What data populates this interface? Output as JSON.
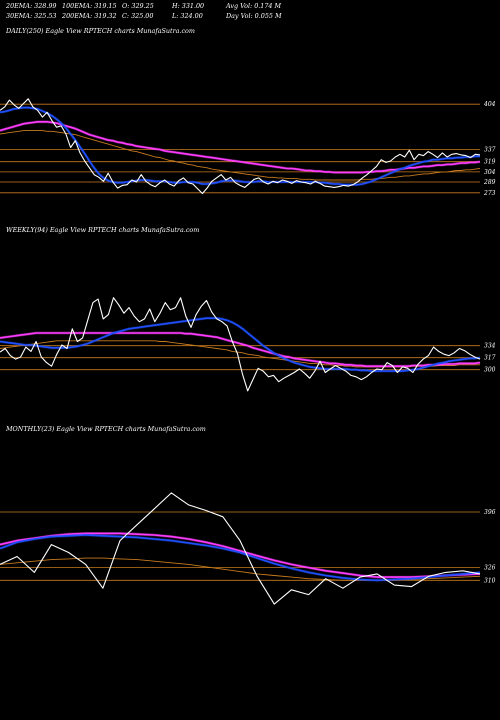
{
  "header": {
    "row1": [
      "20EMA: 328.99",
      "100EMA: 319.15",
      "O: 329.25",
      "H: 331.00",
      "Avg Vol: 0.174  M"
    ],
    "row2": [
      "30EMA: 325.53",
      "200EMA: 319.32",
      "C: 325.00",
      "L: 324.00",
      "Day Vol: 0.055 M"
    ]
  },
  "colors": {
    "background": "#000000",
    "price": "#ffffff",
    "ema_short": "#1f4fff",
    "ema_mid": "#ff3cff",
    "ema_long": "#c87a1e",
    "level_line": "#c87a1e"
  },
  "chart_data": [
    {
      "type": "line",
      "title": "DAILY(250) Eagle   View  RPTECH charts MunafaSutra.com",
      "levels": [
        404,
        337,
        319,
        304,
        289,
        273
      ],
      "series": [
        {
          "role": "price",
          "values": [
            395,
            400,
            410,
            403,
            398,
            405,
            412,
            400,
            395,
            385,
            392,
            380,
            370,
            372,
            360,
            340,
            350,
            332,
            320,
            310,
            300,
            296,
            290,
            302,
            289,
            280,
            284,
            285,
            292,
            289,
            300,
            290,
            285,
            282,
            288,
            292,
            286,
            283,
            291,
            295,
            288,
            286,
            279,
            272,
            280,
            290,
            295,
            300,
            292,
            296,
            288,
            284,
            281,
            287,
            293,
            295,
            289,
            286,
            290,
            288,
            292,
            290,
            287,
            291,
            289,
            288,
            286,
            290,
            287,
            283,
            282,
            281,
            282,
            284,
            283,
            285,
            289,
            295,
            300,
            306,
            312,
            322,
            318,
            320,
            326,
            330,
            326,
            336,
            322,
            330,
            328,
            334,
            330,
            325,
            332,
            326,
            330,
            331,
            329,
            328,
            325,
            330,
            329
          ]
        },
        {
          "role": "ema_short",
          "values": [
            392,
            393,
            395,
            397,
            398,
            399,
            399,
            398,
            397,
            394,
            391,
            387,
            382,
            376,
            369,
            360,
            351,
            341,
            331,
            320,
            310,
            301,
            295,
            291,
            289,
            288,
            288,
            289,
            290,
            291,
            292,
            292,
            291,
            290,
            290,
            290,
            289,
            288,
            288,
            289,
            289,
            289,
            288,
            286,
            286,
            287,
            288,
            290,
            291,
            291,
            291,
            290,
            289,
            289,
            289,
            290,
            290,
            289,
            289,
            289,
            289,
            289,
            289,
            289,
            289,
            289,
            289,
            289,
            288,
            288,
            287,
            286,
            286,
            285,
            285,
            285,
            285,
            286,
            288,
            290,
            293,
            296,
            299,
            302,
            305,
            308,
            310,
            313,
            315,
            317,
            319,
            320,
            322,
            322,
            323,
            324,
            324,
            325,
            325,
            326,
            326,
            327,
            327
          ]
        },
        {
          "role": "ema_mid",
          "values": [
            365,
            367,
            369,
            371,
            373,
            375,
            376,
            377,
            378,
            378,
            378,
            377,
            376,
            374,
            372,
            370,
            368,
            365,
            362,
            359,
            357,
            355,
            353,
            351,
            350,
            348,
            347,
            345,
            344,
            342,
            341,
            340,
            339,
            338,
            337,
            335,
            334,
            333,
            332,
            331,
            330,
            329,
            328,
            327,
            326,
            325,
            324,
            323,
            322,
            321,
            320,
            319,
            318,
            317,
            316,
            315,
            314,
            313,
            312,
            311,
            310,
            309,
            309,
            308,
            307,
            306,
            306,
            305,
            305,
            304,
            304,
            303,
            303,
            303,
            303,
            303,
            303,
            303,
            304,
            304,
            305,
            305,
            306,
            307,
            307,
            308,
            309,
            310,
            310,
            311,
            312,
            312,
            313,
            314,
            314,
            315,
            315,
            316,
            317,
            317,
            318,
            318,
            319
          ]
        },
        {
          "role": "ema_long",
          "values": [
            360,
            361,
            362,
            363,
            364,
            365,
            365,
            365,
            365,
            365,
            364,
            364,
            363,
            362,
            361,
            360,
            359,
            357,
            355,
            353,
            351,
            349,
            347,
            345,
            343,
            341,
            339,
            337,
            335,
            334,
            332,
            330,
            328,
            326,
            325,
            323,
            321,
            320,
            318,
            317,
            315,
            314,
            312,
            311,
            310,
            308,
            307,
            306,
            305,
            304,
            303,
            302,
            301,
            300,
            299,
            298,
            297,
            296,
            296,
            295,
            295,
            294,
            294,
            294,
            293,
            293,
            293,
            292,
            292,
            292,
            292,
            292,
            292,
            292,
            292,
            292,
            292,
            293,
            293,
            293,
            294,
            294,
            295,
            296,
            296,
            297,
            298,
            298,
            299,
            300,
            301,
            301,
            302,
            303,
            304,
            304,
            305,
            306,
            306,
            307,
            307,
            308,
            309
          ]
        }
      ]
    },
    {
      "type": "line",
      "title": "WEEKLY(94) Eagle   View  RPTECH charts MunafaSutra.com",
      "levels": [
        334,
        317,
        300
      ],
      "series": [
        {
          "role": "price",
          "values": [
            325,
            330,
            320,
            315,
            318,
            332,
            326,
            340,
            318,
            310,
            305,
            322,
            335,
            330,
            358,
            340,
            345,
            370,
            395,
            400,
            372,
            378,
            402,
            392,
            380,
            388,
            376,
            368,
            372,
            386,
            368,
            380,
            395,
            385,
            388,
            402,
            376,
            360,
            378,
            390,
            398,
            382,
            372,
            368,
            362,
            340,
            323,
            293,
            270,
            286,
            302,
            298,
            290,
            292,
            283,
            288,
            292,
            296,
            301,
            295,
            288,
            298,
            312,
            296,
            301,
            306,
            302,
            298,
            292,
            290,
            286,
            290,
            296,
            301,
            300,
            310,
            306,
            296,
            304,
            302,
            296,
            308,
            315,
            320,
            332,
            326,
            322,
            320,
            324,
            330,
            327,
            322,
            318,
            315
          ]
        },
        {
          "role": "ema_short",
          "values": [
            340,
            339,
            338,
            337,
            336,
            335,
            335,
            334,
            333,
            332,
            331,
            331,
            331,
            331,
            332,
            333,
            335,
            337,
            340,
            343,
            346,
            349,
            352,
            354,
            356,
            358,
            359,
            360,
            361,
            362,
            363,
            364,
            365,
            366,
            367,
            368,
            369,
            370,
            371,
            372,
            373,
            373,
            373,
            372,
            370,
            367,
            363,
            358,
            352,
            346,
            340,
            334,
            329,
            324,
            320,
            316,
            313,
            310,
            308,
            306,
            304,
            303,
            302,
            301,
            301,
            301,
            301,
            301,
            300,
            300,
            299,
            299,
            298,
            298,
            298,
            298,
            298,
            298,
            298,
            299,
            300,
            301,
            303,
            305,
            307,
            309,
            310,
            312,
            313,
            314,
            315,
            316,
            316,
            317
          ]
        },
        {
          "role": "ema_mid",
          "values": [
            345,
            346,
            347,
            348,
            349,
            350,
            351,
            352,
            352,
            352,
            352,
            352,
            352,
            352,
            352,
            352,
            352,
            352,
            352,
            352,
            352,
            352,
            352,
            352,
            352,
            352,
            352,
            352,
            352,
            352,
            352,
            352,
            352,
            352,
            352,
            352,
            351,
            351,
            350,
            349,
            348,
            347,
            346,
            344,
            342,
            340,
            338,
            336,
            334,
            331,
            329,
            327,
            325,
            323,
            321,
            319,
            318,
            316,
            315,
            314,
            313,
            312,
            311,
            310,
            309,
            309,
            308,
            307,
            307,
            306,
            306,
            305,
            305,
            305,
            305,
            305,
            305,
            305,
            305,
            305,
            306,
            306,
            306,
            307,
            307,
            307,
            308,
            308,
            308,
            309,
            309,
            309,
            309,
            310
          ]
        },
        {
          "role": "ema_long",
          "values": [
            330,
            331,
            332,
            333,
            334,
            335,
            336,
            337,
            338,
            339,
            340,
            341,
            341,
            341,
            341,
            341,
            341,
            341,
            341,
            341,
            341,
            341,
            341,
            341,
            341,
            341,
            341,
            341,
            341,
            341,
            341,
            340,
            340,
            339,
            338,
            337,
            336,
            335,
            334,
            333,
            332,
            331,
            330,
            329,
            328,
            326,
            325,
            324,
            322,
            321,
            320,
            318,
            317,
            316,
            315,
            314,
            313,
            312,
            311,
            310,
            309,
            309,
            308,
            307,
            307,
            306,
            306,
            305,
            305,
            304,
            304,
            304,
            304,
            304,
            304,
            304,
            304,
            304,
            304,
            304,
            305,
            305,
            305,
            305,
            305,
            306,
            306,
            306,
            306,
            307,
            307,
            307,
            307,
            307
          ]
        }
      ]
    },
    {
      "type": "line",
      "title": "MONTHLY(23) Eagle   View  RPTECH charts MunafaSutra.com",
      "levels": [
        396,
        326,
        310
      ],
      "series": [
        {
          "role": "price",
          "values": [
            330,
            340,
            320,
            355,
            345,
            330,
            300,
            360,
            380,
            400,
            420,
            405,
            398,
            390,
            360,
            315,
            280,
            298,
            292,
            312,
            300,
            314,
            318,
            304,
            302,
            315,
            320,
            322,
            318
          ]
        },
        {
          "role": "ema_short",
          "values": [
            350,
            358,
            362,
            365,
            366,
            367,
            366,
            365,
            364,
            362,
            360,
            357,
            354,
            350,
            345,
            338,
            331,
            325,
            320,
            316,
            313,
            311,
            310,
            311,
            312,
            314,
            316,
            318,
            320
          ]
        },
        {
          "role": "ema_mid",
          "values": [
            355,
            360,
            363,
            366,
            368,
            369,
            369,
            369,
            368,
            367,
            365,
            362,
            358,
            353,
            347,
            341,
            335,
            330,
            326,
            322,
            319,
            316,
            314,
            314,
            314,
            315,
            316,
            317,
            318
          ]
        },
        {
          "role": "ema_long",
          "values": [
            330,
            332,
            334,
            336,
            337,
            338,
            338,
            337,
            336,
            334,
            332,
            330,
            327,
            324,
            321,
            318,
            316,
            314,
            312,
            311,
            310,
            310,
            310,
            310,
            311,
            312,
            313,
            314,
            315
          ]
        }
      ]
    }
  ]
}
